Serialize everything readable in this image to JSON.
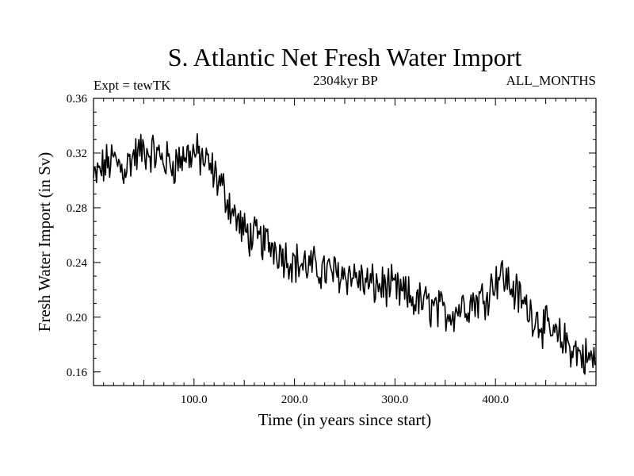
{
  "chart_data": {
    "type": "line",
    "title": "S. Atlantic Net Fresh Water Import",
    "left_note": "Expt = tewTK",
    "center_note": "2304kyr BP",
    "right_note": "ALL_MONTHS",
    "xlabel": "Time (in years since start)",
    "ylabel": "Fresh Water Import (in Sv)",
    "xlim": [
      0,
      500
    ],
    "ylim": [
      0.15,
      0.36
    ],
    "xticks": [
      100,
      200,
      300,
      400
    ],
    "xtick_labels": [
      "100.0",
      "200.0",
      "300.0",
      "400.0"
    ],
    "yticks": [
      0.16,
      0.2,
      0.24,
      0.28,
      0.32,
      0.36
    ],
    "ytick_labels": [
      "0.16",
      "0.20",
      "0.24",
      "0.28",
      "0.32",
      "0.36"
    ],
    "grid": false,
    "series": [
      {
        "name": "Net Fresh Water Import",
        "color": "#000000",
        "anchor_x": [
          0,
          5,
          10,
          20,
          30,
          40,
          50,
          60,
          70,
          80,
          90,
          100,
          110,
          120,
          130,
          140,
          150,
          160,
          170,
          180,
          190,
          200,
          210,
          220,
          230,
          240,
          250,
          260,
          270,
          280,
          290,
          300,
          310,
          320,
          330,
          340,
          350,
          360,
          370,
          380,
          390,
          400,
          405,
          410,
          420,
          430,
          440,
          450,
          460,
          470,
          480,
          490,
          500
        ],
        "anchor_y": [
          0.3,
          0.305,
          0.31,
          0.315,
          0.308,
          0.318,
          0.322,
          0.32,
          0.315,
          0.312,
          0.318,
          0.32,
          0.315,
          0.305,
          0.292,
          0.275,
          0.262,
          0.258,
          0.255,
          0.252,
          0.245,
          0.24,
          0.238,
          0.236,
          0.234,
          0.232,
          0.232,
          0.23,
          0.225,
          0.223,
          0.223,
          0.22,
          0.216,
          0.212,
          0.21,
          0.206,
          0.203,
          0.205,
          0.21,
          0.212,
          0.215,
          0.228,
          0.232,
          0.228,
          0.218,
          0.208,
          0.2,
          0.192,
          0.185,
          0.182,
          0.175,
          0.17,
          0.168
        ],
        "noise_amplitude": 0.013,
        "n_points": 500
      }
    ]
  }
}
